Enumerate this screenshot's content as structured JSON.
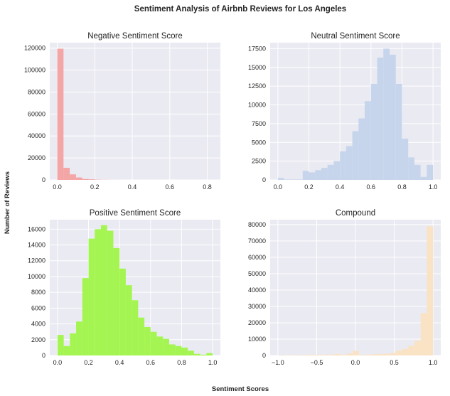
{
  "figure": {
    "suptitle": "Sentiment Analysis of Airbnb Reviews for Los Angeles",
    "ylabel": "Number of Reviews",
    "xlabel": "Sentiment Scores",
    "background": "#eaeaf2",
    "grid": true
  },
  "chart_data": [
    {
      "type": "bar",
      "title": "Negative Sentiment Score",
      "color": "#f4a5a5",
      "xlim": [
        -0.04,
        0.87
      ],
      "ylim": [
        0,
        125000
      ],
      "xticks": [
        0.0,
        0.2,
        0.4,
        0.6,
        0.8
      ],
      "xtick_labels": [
        "0.0",
        "0.2",
        "0.4",
        "0.6",
        "0.8"
      ],
      "yticks": [
        0,
        20000,
        40000,
        60000,
        80000,
        100000,
        120000
      ],
      "ytick_labels": [
        "0",
        "20000",
        "40000",
        "60000",
        "80000",
        "100000",
        "120000"
      ],
      "bin_start": 0.0,
      "bin_width": 0.0333,
      "values": [
        119500,
        11000,
        5000,
        2200,
        800,
        500,
        200,
        100,
        50,
        30,
        20,
        10,
        5,
        5,
        5,
        3,
        3,
        3,
        2,
        2,
        2,
        2,
        1,
        1,
        1
      ]
    },
    {
      "type": "bar",
      "title": "Neutral Sentiment Score",
      "color": "#c6d5eb",
      "xlim": [
        -0.05,
        1.05
      ],
      "ylim": [
        0,
        18300
      ],
      "xticks": [
        0.0,
        0.2,
        0.4,
        0.6,
        0.8,
        1.0
      ],
      "xtick_labels": [
        "0.0",
        "0.2",
        "0.4",
        "0.6",
        "0.8",
        "1.0"
      ],
      "yticks": [
        0,
        2500,
        5000,
        7500,
        10000,
        12500,
        15000,
        17500
      ],
      "ytick_labels": [
        "0",
        "2500",
        "5000",
        "7500",
        "10000",
        "12500",
        "15000",
        "17500"
      ],
      "bin_start": 0.0,
      "bin_width": 0.04,
      "values": [
        250,
        50,
        50,
        50,
        1200,
        1000,
        1300,
        1600,
        2000,
        2500,
        3800,
        4500,
        6500,
        8200,
        10500,
        12800,
        16300,
        17500,
        16700,
        12800,
        5500,
        3000,
        2000,
        400,
        2000
      ]
    },
    {
      "type": "bar",
      "title": "Positive Sentiment Score",
      "color": "#a4f551",
      "xlim": [
        -0.05,
        1.05
      ],
      "ylim": [
        0,
        17200
      ],
      "xticks": [
        0.0,
        0.2,
        0.4,
        0.6,
        0.8,
        1.0
      ],
      "xtick_labels": [
        "0.0",
        "0.2",
        "0.4",
        "0.6",
        "0.8",
        "1.0"
      ],
      "yticks": [
        0,
        2000,
        4000,
        6000,
        8000,
        10000,
        12000,
        14000,
        16000
      ],
      "ytick_labels": [
        "0",
        "2000",
        "4000",
        "6000",
        "8000",
        "10000",
        "12000",
        "14000",
        "16000"
      ],
      "bin_start": 0.0,
      "bin_width": 0.04,
      "values": [
        2600,
        1200,
        2800,
        4300,
        9800,
        14800,
        16000,
        16500,
        15800,
        13600,
        11000,
        8900,
        7000,
        4800,
        3600,
        3000,
        2400,
        2100,
        1400,
        1200,
        1000,
        600,
        200,
        100,
        300
      ]
    },
    {
      "type": "bar",
      "title": "Compound",
      "color": "#fae3c5",
      "xlim": [
        -1.1,
        1.1
      ],
      "ylim": [
        0,
        83000
      ],
      "xticks": [
        -1.0,
        -0.5,
        0.0,
        0.5,
        1.0
      ],
      "xtick_labels": [
        "−1.0",
        "−0.5",
        "0.0",
        "0.5",
        "1.0"
      ],
      "yticks": [
        0,
        10000,
        20000,
        30000,
        40000,
        50000,
        60000,
        70000,
        80000
      ],
      "ytick_labels": [
        "0",
        "10000",
        "20000",
        "30000",
        "40000",
        "50000",
        "60000",
        "70000",
        "80000"
      ],
      "bin_start": -0.99,
      "bin_width": 0.0796,
      "values": [
        300,
        200,
        200,
        300,
        400,
        400,
        500,
        500,
        500,
        900,
        500,
        1200,
        2800,
        400,
        500,
        800,
        900,
        1000,
        1500,
        3000,
        4000,
        6000,
        9000,
        26000,
        79000
      ]
    }
  ]
}
